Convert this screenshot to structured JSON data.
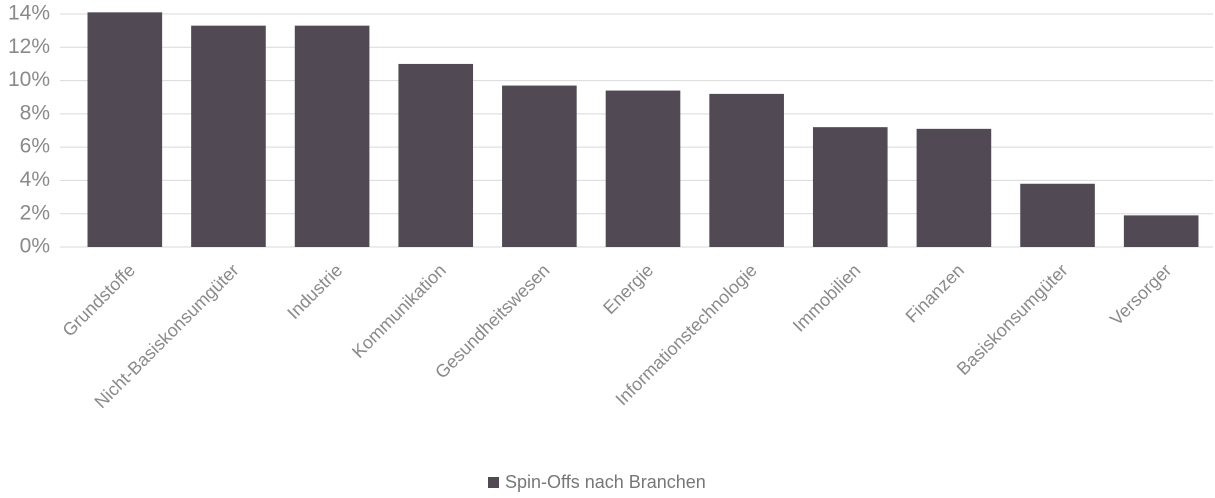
{
  "chart_data": {
    "type": "bar",
    "categories": [
      "Grundstoffe",
      "Nicht-Basiskonsumgüter",
      "Industrie",
      "Kommunikation",
      "Gesundheitswesen",
      "Energie",
      "Informationstechnologie",
      "Immobilien",
      "Finanzen",
      "Basiskonsumgüter",
      "Versorger"
    ],
    "series": [
      {
        "name": "Spin-Offs nach Branchen",
        "color": "#514a55",
        "values": [
          14.1,
          13.3,
          13.3,
          11.0,
          9.7,
          9.4,
          9.2,
          7.2,
          7.1,
          3.8,
          1.9
        ]
      }
    ],
    "ylim": [
      0,
      14
    ],
    "yticks": [
      {
        "value": 0,
        "label": "0%"
      },
      {
        "value": 2,
        "label": "2%"
      },
      {
        "value": 4,
        "label": "4%"
      },
      {
        "value": 6,
        "label": "6%"
      },
      {
        "value": 8,
        "label": "8%"
      },
      {
        "value": 10,
        "label": "10%"
      },
      {
        "value": 12,
        "label": "12%"
      },
      {
        "value": 14,
        "label": "14%"
      }
    ],
    "grid": true,
    "legend": "bottom"
  }
}
